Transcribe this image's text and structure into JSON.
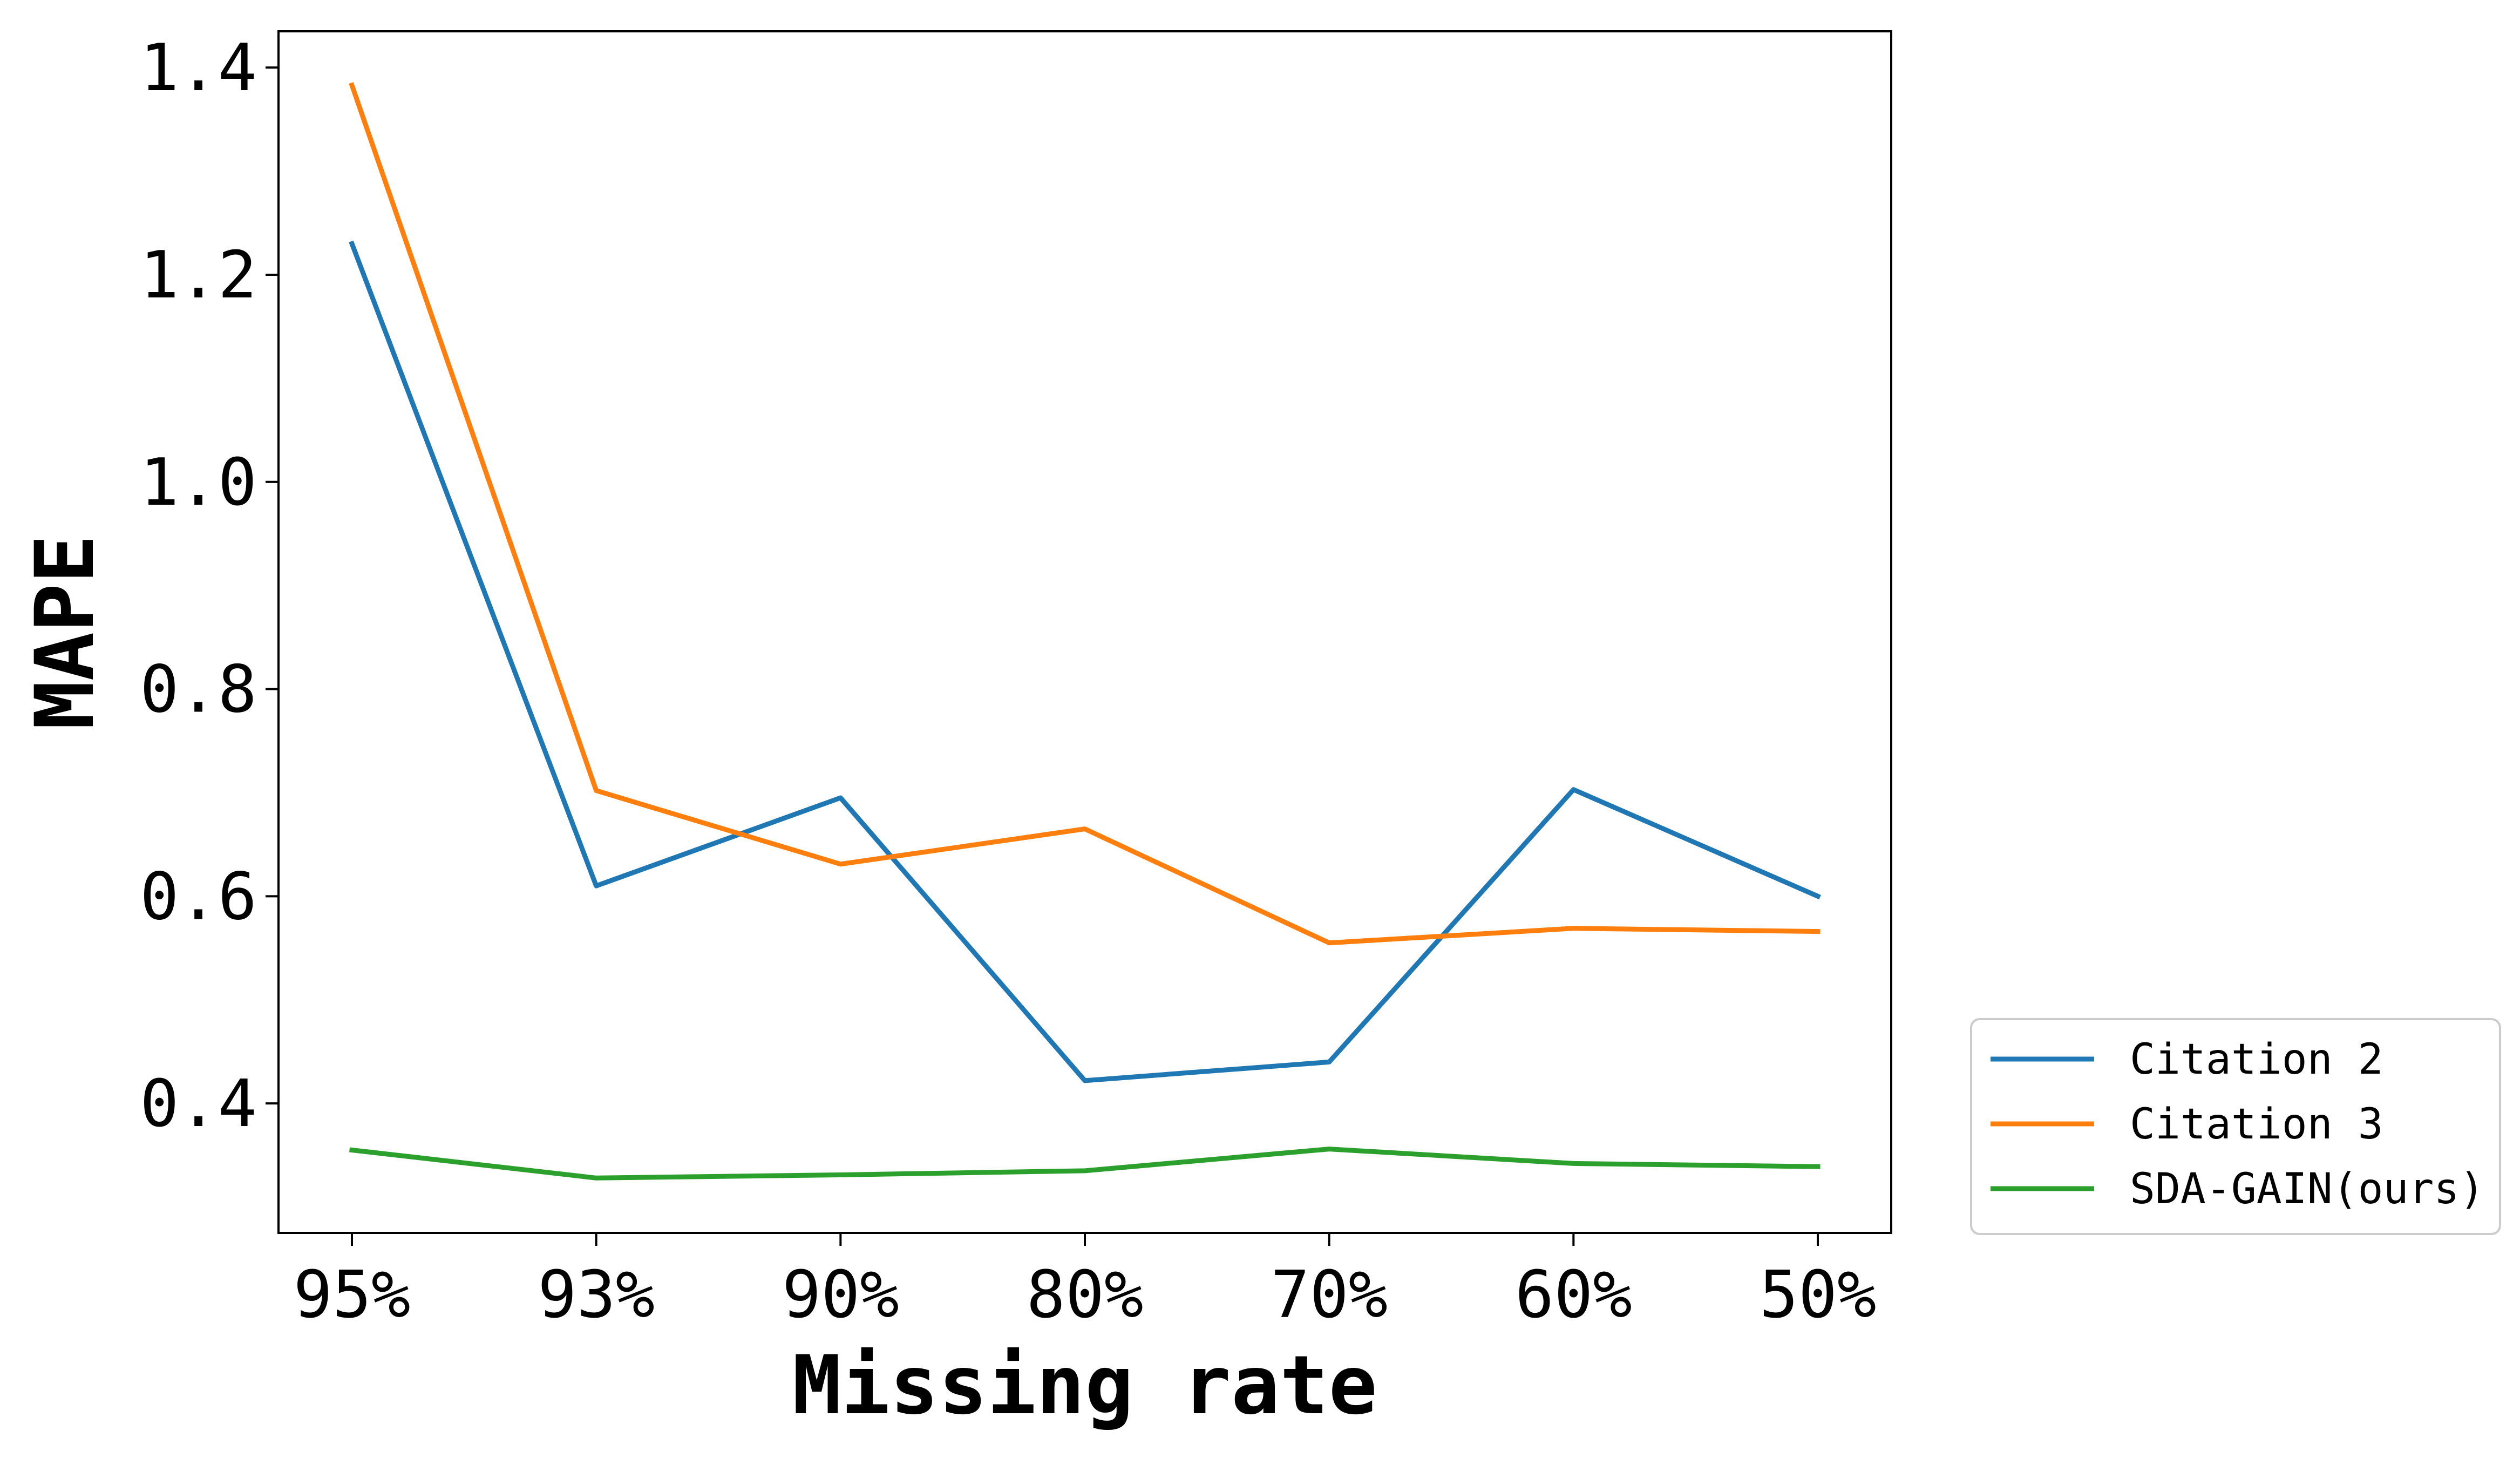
{
  "chart_data": {
    "type": "line",
    "xlabel": "Missing rate",
    "ylabel": "MAPE",
    "categories": [
      "95%",
      "93%",
      "90%",
      "80%",
      "70%",
      "60%",
      "50%"
    ],
    "yticks": [
      "0.4",
      "0.6",
      "0.8",
      "1.0",
      "1.2",
      "1.4"
    ],
    "ylim": [
      0.275,
      1.435
    ],
    "grid": false,
    "legend_position": "outside-bottom-right",
    "series": [
      {
        "name": "Citation 2",
        "color": "#1f77b4",
        "values": [
          1.23,
          0.61,
          0.695,
          0.422,
          0.44,
          0.703,
          0.6
        ]
      },
      {
        "name": "Citation 3",
        "color": "#ff7f0e",
        "values": [
          1.383,
          0.702,
          0.631,
          0.665,
          0.555,
          0.569,
          0.566
        ]
      },
      {
        "name": "SDA-GAIN(ours)",
        "color": "#2ca02c",
        "values": [
          0.355,
          0.328,
          0.331,
          0.335,
          0.356,
          0.342,
          0.339
        ]
      }
    ]
  }
}
